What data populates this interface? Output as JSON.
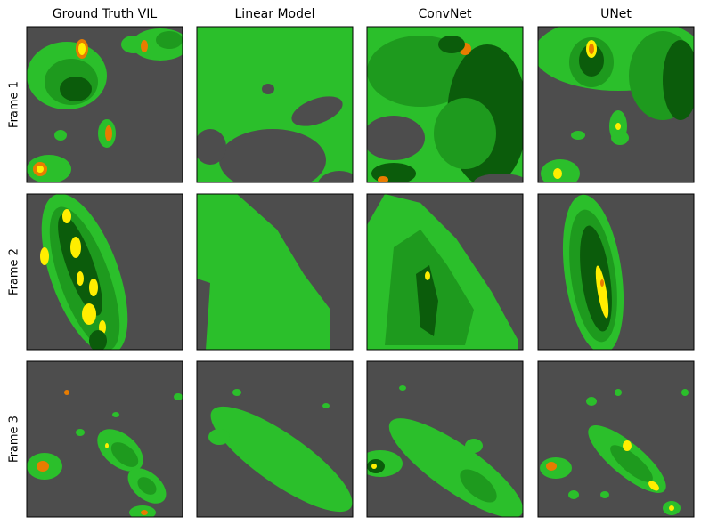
{
  "columns": [
    "Ground Truth VIL",
    "Linear Model",
    "ConvNet",
    "UNet"
  ],
  "rows": [
    "Frame 1",
    "Frame 2",
    "Frame 3"
  ]
}
